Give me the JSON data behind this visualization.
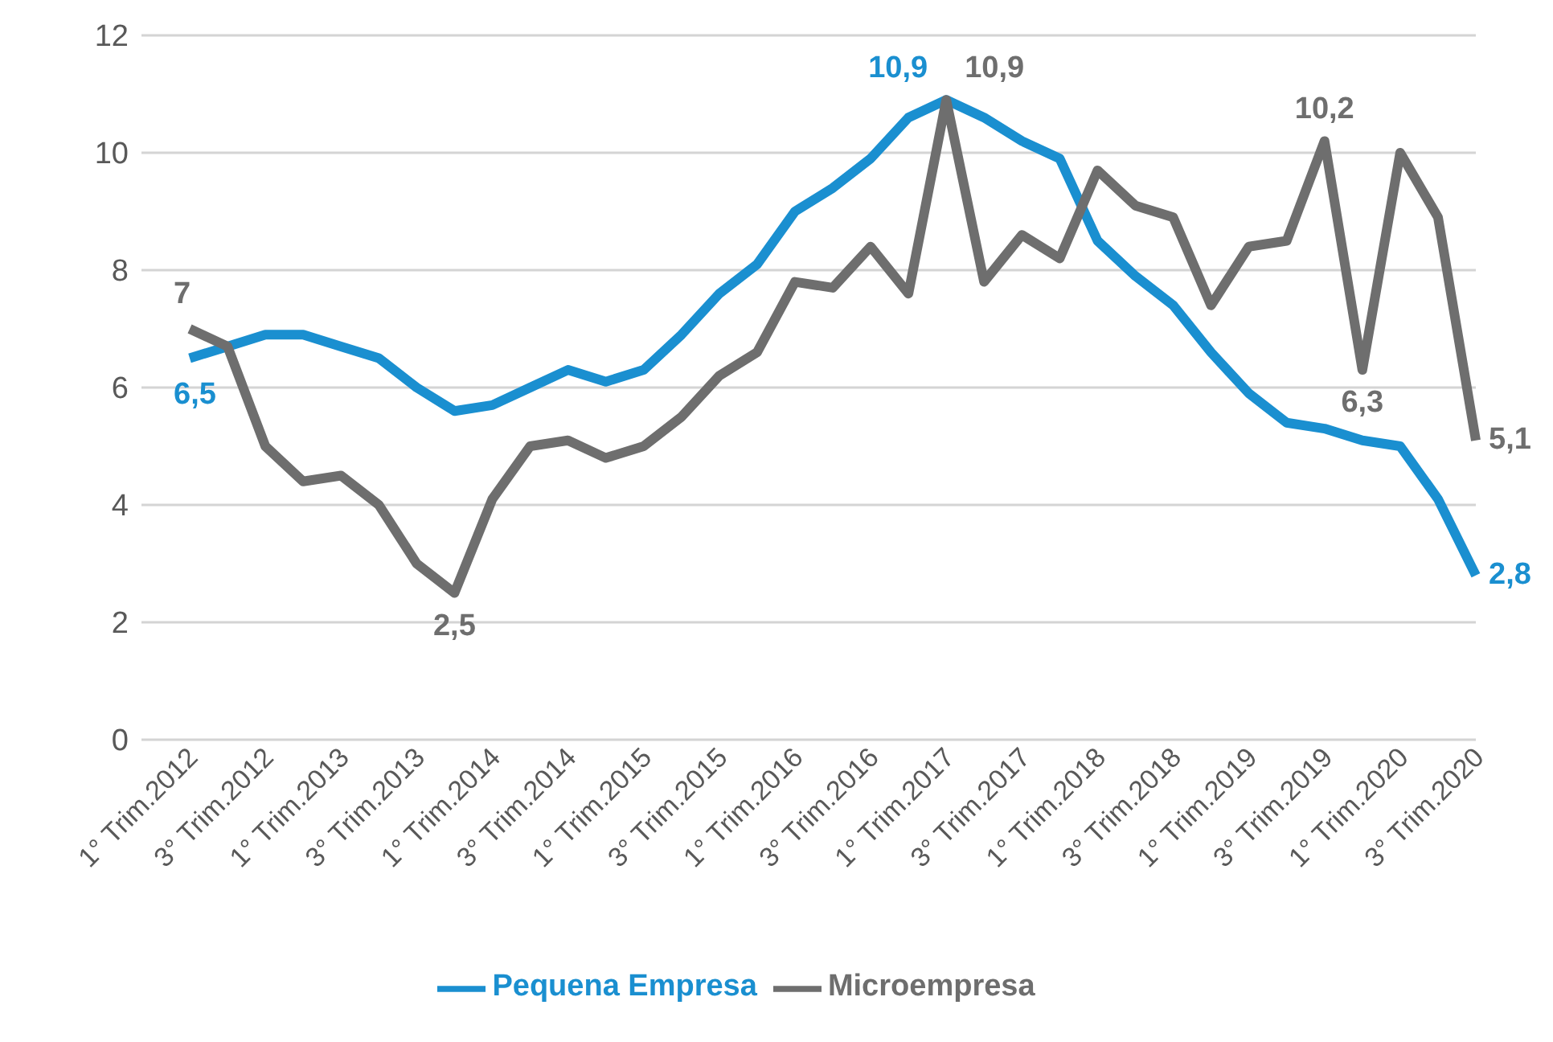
{
  "chart_data": {
    "type": "line",
    "categories": [
      "1° Trim.2012",
      null,
      "3° Trim.2012",
      null,
      "1° Trim.2013",
      null,
      "3° Trim.2013",
      null,
      "1° Trim.2014",
      null,
      "3° Trim.2014",
      null,
      "1° Trim.2015",
      null,
      "3° Trim.2015",
      null,
      "1° Trim.2016",
      null,
      "3° Trim.2016",
      null,
      "1° Trim.2017",
      null,
      "3° Trim.2017",
      null,
      "1° Trim.2018",
      null,
      "3° Trim.2018",
      null,
      "1° Trim.2019",
      null,
      "3° Trim.2019",
      null,
      "1° Trim.2020",
      null,
      "3° Trim.2020"
    ],
    "series": [
      {
        "name": "Pequena Empresa",
        "color": "#1a8fd0",
        "values": [
          6.5,
          6.7,
          6.9,
          6.9,
          6.7,
          6.5,
          6.0,
          5.6,
          5.7,
          6.0,
          6.3,
          6.1,
          6.3,
          6.9,
          7.6,
          8.1,
          9.0,
          9.4,
          9.9,
          10.6,
          10.9,
          10.6,
          10.2,
          9.9,
          8.5,
          7.9,
          7.4,
          6.6,
          5.9,
          5.4,
          5.3,
          5.1,
          5.0,
          4.1,
          2.8
        ],
        "value_labels": [
          "6,5",
          null,
          null,
          null,
          null,
          null,
          null,
          null,
          null,
          null,
          null,
          null,
          null,
          null,
          null,
          null,
          null,
          null,
          null,
          null,
          "10,9",
          null,
          null,
          null,
          null,
          null,
          null,
          null,
          null,
          null,
          null,
          null,
          null,
          null,
          "2,8"
        ]
      },
      {
        "name": "Microempresa",
        "color": "#6e6e6e",
        "values": [
          7.0,
          6.7,
          5.0,
          4.4,
          4.5,
          4.0,
          3.0,
          2.5,
          4.1,
          5.0,
          5.1,
          4.8,
          5.0,
          5.5,
          6.2,
          6.6,
          7.8,
          7.7,
          8.4,
          7.6,
          10.9,
          7.8,
          8.6,
          8.2,
          9.7,
          9.1,
          8.9,
          7.4,
          8.4,
          8.5,
          10.2,
          6.3,
          10.0,
          8.9,
          5.1
        ],
        "value_labels": [
          "7",
          null,
          null,
          null,
          null,
          null,
          null,
          "2,5",
          null,
          null,
          null,
          null,
          null,
          null,
          null,
          null,
          null,
          null,
          null,
          null,
          "10,9",
          null,
          null,
          null,
          null,
          null,
          null,
          null,
          null,
          null,
          "10,2",
          "6,3",
          null,
          null,
          "5,1"
        ]
      }
    ],
    "ylim": [
      0,
      12
    ],
    "yticks": [
      0,
      2,
      4,
      6,
      8,
      10,
      12
    ],
    "grid": "y",
    "legend": "bottom",
    "marker": "none",
    "line_style": "solid"
  }
}
